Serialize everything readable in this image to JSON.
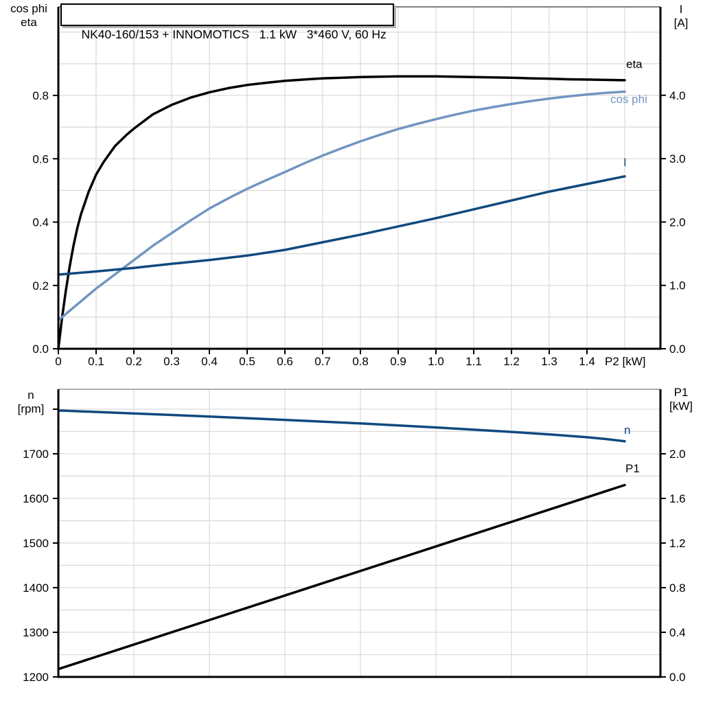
{
  "colors": {
    "black": "#000000",
    "steel_blue": "#7195c2",
    "dark_blue": "#10497e",
    "grid": "#d9d9d9",
    "frame_top_chart": "#333333",
    "frame_bottom_chart": "#808080"
  },
  "chart_data": [
    {
      "type": "line",
      "name": "top-chart",
      "title": "NK40-160/153 + INNOMOTICS   1.1 kW   3*460 V, 60 Hz",
      "frame_color": "#333333",
      "x_axis": {
        "label": "P2 [kW]",
        "min": 0,
        "max": 1.5945,
        "grid": {
          "start": 0.1,
          "end": 1.5,
          "step": 0.1
        },
        "ticks": [
          {
            "v": 0,
            "label": "0"
          },
          {
            "v": 0.1,
            "label": "0.1"
          },
          {
            "v": 0.2,
            "label": "0.2"
          },
          {
            "v": 0.3,
            "label": "0.3"
          },
          {
            "v": 0.4,
            "label": "0.4"
          },
          {
            "v": 0.5,
            "label": "0.5"
          },
          {
            "v": 0.6,
            "label": "0.6"
          },
          {
            "v": 0.7,
            "label": "0.7"
          },
          {
            "v": 0.8,
            "label": "0.8"
          },
          {
            "v": 0.9,
            "label": "0.9"
          },
          {
            "v": 1.0,
            "label": "1.0"
          },
          {
            "v": 1.1,
            "label": "1.1"
          },
          {
            "v": 1.2,
            "label": "1.2"
          },
          {
            "v": 1.3,
            "label": "1.3"
          },
          {
            "v": 1.4,
            "label": "1.4"
          }
        ]
      },
      "left_axis": {
        "title_lines": [
          "cos phi",
          "eta"
        ],
        "min": 0,
        "max": 1.0797,
        "grid": {
          "start": 0.1,
          "end": 1.0,
          "step": 0.1
        },
        "ticks": [
          {
            "v": 0.0,
            "label": "0.0"
          },
          {
            "v": 0.2,
            "label": "0.2"
          },
          {
            "v": 0.4,
            "label": "0.4"
          },
          {
            "v": 0.6,
            "label": "0.6"
          },
          {
            "v": 0.8,
            "label": "0.8"
          }
        ]
      },
      "right_axis": {
        "title_lines": [
          "I",
          "[A]"
        ],
        "min": 0,
        "max": 5.395,
        "ticks": [
          {
            "v": 0,
            "label": "0.0"
          },
          {
            "v": 1,
            "label": "1.0"
          },
          {
            "v": 2,
            "label": "2.0"
          },
          {
            "v": 3,
            "label": "3.0"
          },
          {
            "v": 4,
            "label": "4.0"
          }
        ]
      },
      "series": [
        {
          "name": "eta",
          "label": "eta",
          "axis": "left",
          "color": "#000000",
          "points": [
            [
              0,
              0
            ],
            [
              0.01,
              0.1
            ],
            [
              0.02,
              0.185
            ],
            [
              0.03,
              0.26
            ],
            [
              0.04,
              0.325
            ],
            [
              0.05,
              0.38
            ],
            [
              0.06,
              0.425
            ],
            [
              0.08,
              0.495
            ],
            [
              0.1,
              0.55
            ],
            [
              0.12,
              0.59
            ],
            [
              0.15,
              0.64
            ],
            [
              0.18,
              0.675
            ],
            [
              0.2,
              0.695
            ],
            [
              0.25,
              0.74
            ],
            [
              0.3,
              0.77
            ],
            [
              0.35,
              0.793
            ],
            [
              0.4,
              0.81
            ],
            [
              0.45,
              0.823
            ],
            [
              0.5,
              0.833
            ],
            [
              0.55,
              0.84
            ],
            [
              0.6,
              0.846
            ],
            [
              0.65,
              0.85
            ],
            [
              0.7,
              0.854
            ],
            [
              0.75,
              0.856
            ],
            [
              0.8,
              0.858
            ],
            [
              0.85,
              0.859
            ],
            [
              0.9,
              0.86
            ],
            [
              0.95,
              0.86
            ],
            [
              1.0,
              0.86
            ],
            [
              1.05,
              0.859
            ],
            [
              1.1,
              0.858
            ],
            [
              1.15,
              0.857
            ],
            [
              1.2,
              0.856
            ],
            [
              1.25,
              0.854
            ],
            [
              1.3,
              0.853
            ],
            [
              1.35,
              0.851
            ],
            [
              1.4,
              0.85
            ],
            [
              1.45,
              0.849
            ],
            [
              1.5,
              0.848
            ]
          ]
        },
        {
          "name": "cos-phi",
          "label": "cos phi",
          "axis": "left",
          "color": "#7195c2",
          "points": [
            [
              0,
              0.09
            ],
            [
              0.05,
              0.14
            ],
            [
              0.1,
              0.19
            ],
            [
              0.15,
              0.235
            ],
            [
              0.2,
              0.28
            ],
            [
              0.25,
              0.325
            ],
            [
              0.3,
              0.365
            ],
            [
              0.35,
              0.405
            ],
            [
              0.4,
              0.443
            ],
            [
              0.45,
              0.475
            ],
            [
              0.5,
              0.505
            ],
            [
              0.55,
              0.532
            ],
            [
              0.6,
              0.558
            ],
            [
              0.65,
              0.585
            ],
            [
              0.7,
              0.61
            ],
            [
              0.75,
              0.633
            ],
            [
              0.8,
              0.655
            ],
            [
              0.85,
              0.675
            ],
            [
              0.9,
              0.694
            ],
            [
              0.95,
              0.71
            ],
            [
              1.0,
              0.725
            ],
            [
              1.05,
              0.739
            ],
            [
              1.1,
              0.752
            ],
            [
              1.15,
              0.763
            ],
            [
              1.2,
              0.773
            ],
            [
              1.25,
              0.782
            ],
            [
              1.3,
              0.79
            ],
            [
              1.35,
              0.797
            ],
            [
              1.4,
              0.803
            ],
            [
              1.45,
              0.808
            ],
            [
              1.5,
              0.812
            ]
          ]
        },
        {
          "name": "current",
          "label": "I",
          "axis": "right",
          "color": "#10497e",
          "points": [
            [
              0,
              1.17
            ],
            [
              0.1,
              1.22
            ],
            [
              0.2,
              1.275
            ],
            [
              0.3,
              1.34
            ],
            [
              0.4,
              1.4
            ],
            [
              0.5,
              1.47
            ],
            [
              0.6,
              1.56
            ],
            [
              0.7,
              1.68
            ],
            [
              0.8,
              1.8
            ],
            [
              0.9,
              1.93
            ],
            [
              1.0,
              2.06
            ],
            [
              1.1,
              2.2
            ],
            [
              1.2,
              2.34
            ],
            [
              1.3,
              2.48
            ],
            [
              1.4,
              2.6
            ],
            [
              1.5,
              2.72
            ]
          ]
        }
      ]
    },
    {
      "type": "line",
      "name": "bottom-chart",
      "frame_color": "#808080",
      "x_axis": {
        "label": "",
        "min": 0,
        "max": 1.5945,
        "grid": {
          "start": 0.2,
          "end": 1.4,
          "step": 0.2
        },
        "ticks": []
      },
      "left_axis": {
        "title_lines": [
          "n",
          "[rpm]"
        ],
        "min": 1200,
        "max": 1844.6,
        "grid": {
          "start": 1250,
          "end": 1800,
          "step": 50
        },
        "ticks": [
          {
            "v": 1200,
            "label": "1200"
          },
          {
            "v": 1300,
            "label": "1300"
          },
          {
            "v": 1400,
            "label": "1400"
          },
          {
            "v": 1500,
            "label": "1500"
          },
          {
            "v": 1600,
            "label": "1600"
          },
          {
            "v": 1700,
            "label": "1700"
          },
          {
            "v": 1800,
            "label": ""
          }
        ]
      },
      "right_axis": {
        "title_lines": [
          "P1",
          "[kW]"
        ],
        "min": 0,
        "max": 2.5785,
        "ticks": [
          {
            "v": 0.0,
            "label": "0.0"
          },
          {
            "v": 0.4,
            "label": "0.4"
          },
          {
            "v": 0.8,
            "label": "0.8"
          },
          {
            "v": 1.2,
            "label": "1.2"
          },
          {
            "v": 1.6,
            "label": "1.6"
          },
          {
            "v": 2.0,
            "label": "2.0"
          }
        ]
      },
      "series": [
        {
          "name": "speed",
          "label": "n",
          "axis": "left",
          "color": "#10497e",
          "points": [
            [
              0,
              1797
            ],
            [
              0.2,
              1790.5
            ],
            [
              0.4,
              1783.5
            ],
            [
              0.6,
              1776
            ],
            [
              0.8,
              1768
            ],
            [
              1.0,
              1759
            ],
            [
              1.1,
              1754
            ],
            [
              1.2,
              1749
            ],
            [
              1.3,
              1743.5
            ],
            [
              1.4,
              1737
            ],
            [
              1.45,
              1733
            ],
            [
              1.5,
              1728
            ]
          ]
        },
        {
          "name": "input-power",
          "label": "P1",
          "axis": "right",
          "color": "#000000",
          "points": [
            [
              0,
              0.07
            ],
            [
              0.25,
              0.345
            ],
            [
              0.5,
              0.62
            ],
            [
              0.75,
              0.895
            ],
            [
              1.0,
              1.17
            ],
            [
              1.25,
              1.445
            ],
            [
              1.5,
              1.72
            ]
          ]
        }
      ]
    }
  ]
}
